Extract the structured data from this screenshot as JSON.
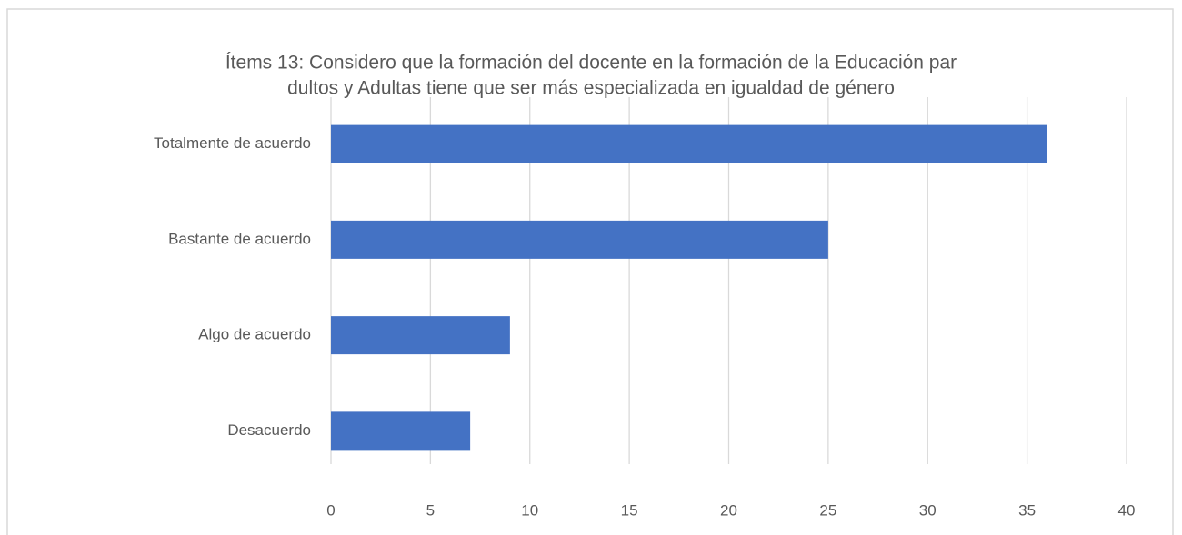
{
  "chart_data": {
    "type": "bar",
    "orientation": "horizontal",
    "title": [
      "Ítems 13: Considero que la formación del docente en la formación de la Educación par",
      "dultos y Adultas tiene que ser más especializada en igualdad de género"
    ],
    "categories": [
      "Totalmente de acuerdo",
      "Bastante de acuerdo",
      "Algo de acuerdo",
      "Desacuerdo"
    ],
    "values": [
      36,
      25,
      9,
      7
    ],
    "color": "#4472c4",
    "xlim": [
      0,
      40
    ],
    "xticks": [
      0,
      5,
      10,
      15,
      20,
      25,
      30,
      35,
      40
    ],
    "grid": true
  }
}
